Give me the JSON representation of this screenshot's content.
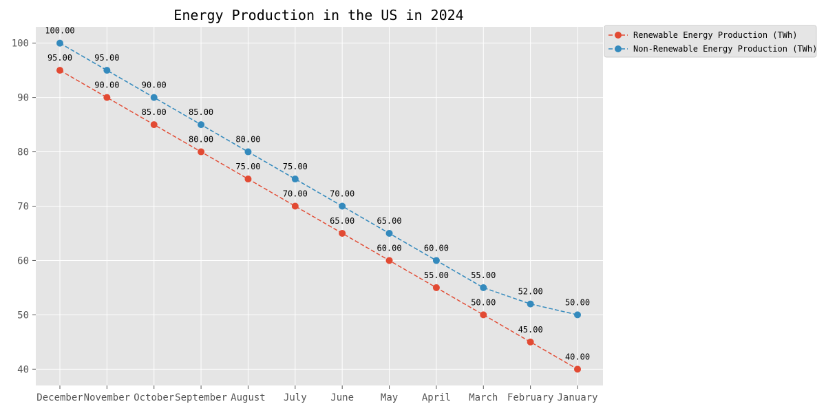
{
  "chart_data": {
    "type": "line",
    "title": "Energy Production in the US in 2024",
    "xlabel": "",
    "ylabel": "",
    "categories": [
      "December",
      "November",
      "October",
      "September",
      "August",
      "July",
      "June",
      "May",
      "April",
      "March",
      "February",
      "January"
    ],
    "series": [
      {
        "name": "Renewable Energy Production (TWh)",
        "values": [
          95,
          90,
          85,
          80,
          75,
          70,
          65,
          60,
          55,
          50,
          45,
          40
        ],
        "labels": [
          "95.00",
          "90.00",
          "85.00",
          "80.00",
          "75.00",
          "70.00",
          "65.00",
          "60.00",
          "55.00",
          "50.00",
          "45.00",
          "40.00"
        ],
        "color": "#e24a33",
        "line_style": "dashed",
        "marker": "circle"
      },
      {
        "name": "Non-Renewable Energy Production (TWh)",
        "values": [
          100,
          95,
          90,
          85,
          80,
          75,
          70,
          65,
          60,
          55,
          52,
          50
        ],
        "labels": [
          "100.00",
          "95.00",
          "90.00",
          "85.00",
          "80.00",
          "75.00",
          "70.00",
          "65.00",
          "60.00",
          "55.00",
          "52.00",
          "50.00"
        ],
        "color": "#348abd",
        "line_style": "dashed",
        "marker": "circle"
      }
    ],
    "yticks": [
      "40",
      "50",
      "60",
      "70",
      "80",
      "90",
      "100"
    ],
    "ylim": [
      37,
      103
    ],
    "grid": true,
    "plot_background": "#e5e5e5",
    "grid_color": "#ffffff",
    "legend_placement": "outside-top-right"
  }
}
